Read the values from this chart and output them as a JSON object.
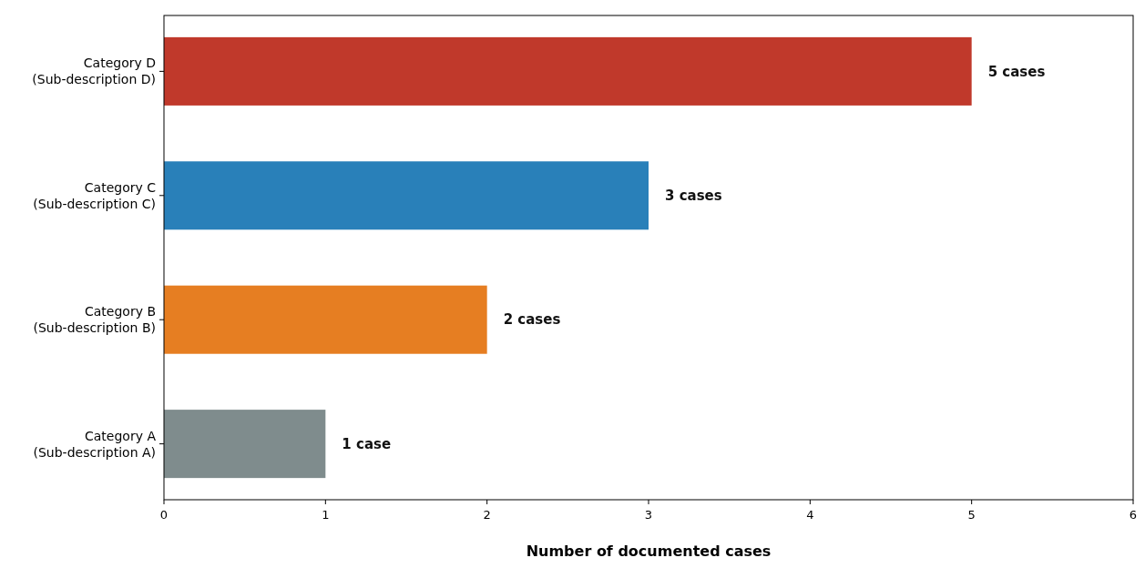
{
  "chart_data": {
    "type": "bar",
    "orientation": "horizontal",
    "xlabel": "Number of documented cases",
    "categories": [
      "Category D\n(Sub-description D)",
      "Category C\n(Sub-description C)",
      "Category B\n(Sub-description B)",
      "Category A\n(Sub-description A)"
    ],
    "values": [
      5,
      3,
      2,
      1
    ],
    "colors": [
      "#c0392b",
      "#2980b9",
      "#e67e22",
      "#7f8c8d"
    ],
    "value_labels": [
      "5 cases",
      "3 cases",
      "2 cases",
      "1 case"
    ],
    "xlim": [
      0,
      6
    ],
    "xticks": [
      0,
      1,
      2,
      3,
      4,
      5,
      6
    ],
    "grid": false
  }
}
